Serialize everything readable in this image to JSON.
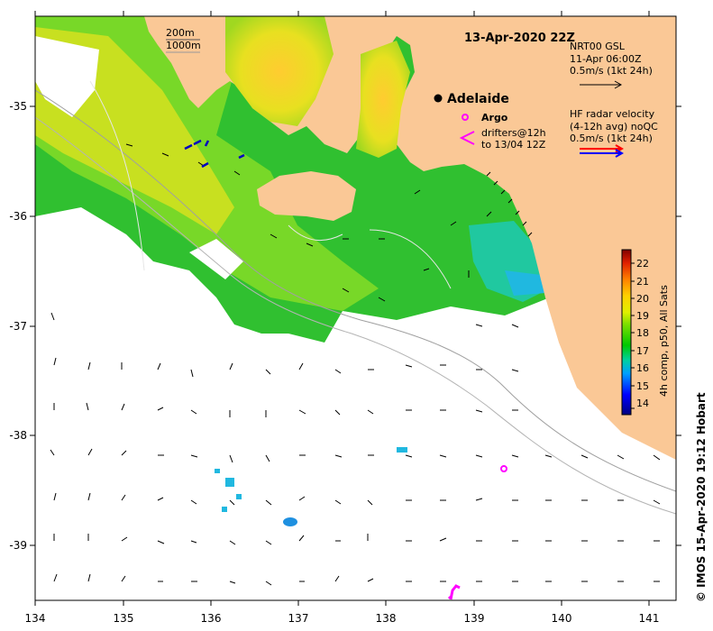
{
  "map": {
    "title": "13-Apr-2020 22Z",
    "place_label": "Adelaide",
    "argo_label": "Argo",
    "drifter_label_line1": "drifters@12h",
    "drifter_label_line2": "to 13/04 12Z",
    "depth_legend_1": "200m",
    "depth_legend_2": "1000m",
    "current_legend": {
      "line1": "NRT00 GSL",
      "line2": "11-Apr 06:00Z",
      "line3": "0.5m/s (1kt 24h)"
    },
    "hf_legend": {
      "line1": "HF radar velocity",
      "line2": "(4-12h avg) noQC",
      "line3": "0.5m/s (1kt 24h)"
    },
    "credit": "© IMOS 15-Apr-2020 19:12 Hobart",
    "colorbar_title": "4h comp, p50, All Sats",
    "colorbar_ticks": [
      "14",
      "15",
      "16",
      "17",
      "18",
      "19",
      "20",
      "21",
      "22"
    ],
    "x_ticks": [
      "134",
      "135",
      "136",
      "137",
      "138",
      "139",
      "140",
      "141"
    ],
    "y_ticks": [
      "-35",
      "-36",
      "-37",
      "-38",
      "-39"
    ],
    "colors": {
      "land": "#fac896",
      "ocean_missing": "#ffffff",
      "argo": "#ff00ff",
      "drifter": "#ff00ff"
    }
  },
  "chart_data": {
    "type": "heatmap",
    "title": "13-Apr-2020 22Z",
    "xlim": [
      134,
      141.3
    ],
    "ylim": [
      -39.5,
      -34.2
    ],
    "x_ticks": [
      134,
      135,
      136,
      137,
      138,
      139,
      140,
      141
    ],
    "y_ticks": [
      -35,
      -36,
      -37,
      -38,
      -39
    ],
    "colorbar": {
      "min": 13.5,
      "max": 22.7,
      "ticks": [
        14,
        15,
        16,
        17,
        18,
        19,
        20,
        21,
        22
      ]
    },
    "markers": [
      {
        "name": "Adelaide",
        "lon": 138.58,
        "lat": -34.93
      },
      {
        "name": "Argo",
        "lon": 139.35,
        "lat": -38.32
      }
    ]
  }
}
